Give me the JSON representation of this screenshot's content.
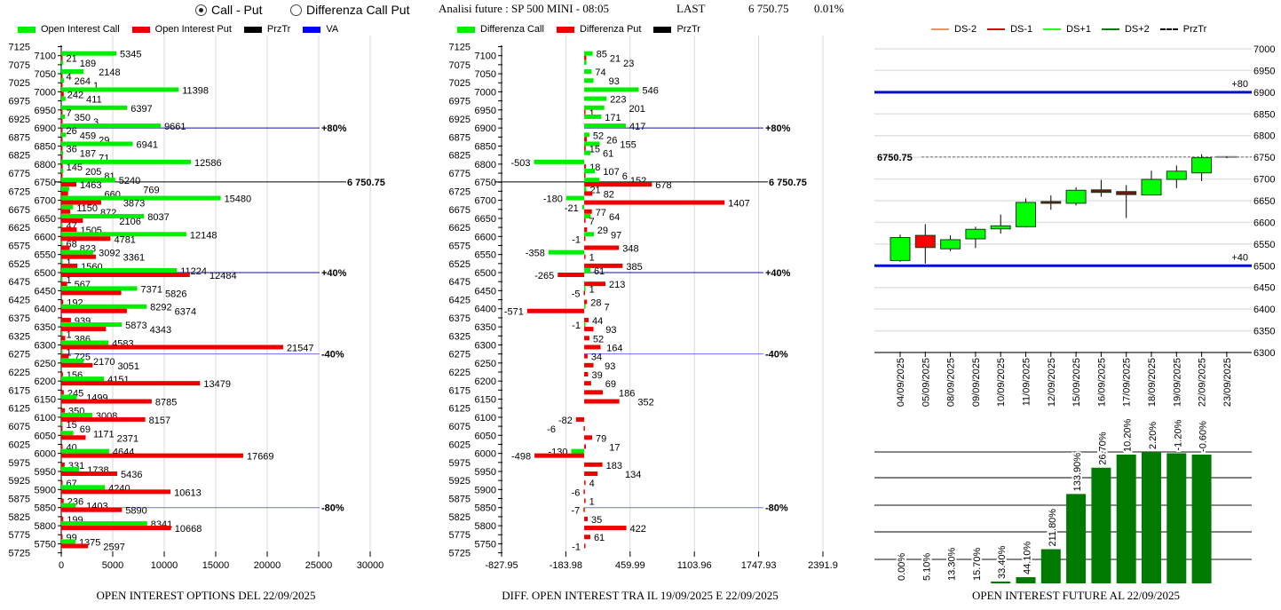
{
  "header": {
    "radio_options": [
      {
        "label": "Call - Put",
        "selected": true
      },
      {
        "label": "Differenza Call Put",
        "selected": false
      }
    ],
    "analysis_title": "Analisi future : SP 500 MINI - 08:05",
    "last_label": "LAST",
    "last_value": "6 750.75",
    "last_change": "0.01%"
  },
  "colors": {
    "call": "#00ee00",
    "put": "#ee0000",
    "prztr": "#000000",
    "va": "#0000ff",
    "level_dark": "#1010a0",
    "level_light": "#7070f0",
    "future_bar": "#007a00"
  },
  "chart_data": [
    {
      "type": "bar",
      "orientation": "horizontal",
      "title": "OPEN INTEREST OPTIONS DEL 22/09/2025",
      "legend": [
        {
          "name": "Open Interest Call",
          "color": "#00ee00"
        },
        {
          "name": "Open Interest Put",
          "color": "#ee0000"
        },
        {
          "name": "PrzTr",
          "color": "#000000"
        },
        {
          "name": "VA",
          "color": "#0000ff"
        }
      ],
      "ylim": [
        5725,
        7125
      ],
      "ytick_step": 25,
      "xlim": [
        0,
        30000
      ],
      "xticks": [
        0,
        5000,
        10000,
        15000,
        20000,
        25000,
        30000
      ],
      "strikes": [
        7100,
        7075,
        7050,
        7025,
        7000,
        6975,
        6950,
        6925,
        6900,
        6875,
        6850,
        6825,
        6800,
        6775,
        6750,
        6725,
        6700,
        6675,
        6650,
        6625,
        6600,
        6575,
        6550,
        6525,
        6500,
        6475,
        6450,
        6425,
        6400,
        6375,
        6350,
        6325,
        6300,
        6275,
        6250,
        6225,
        6200,
        6175,
        6150,
        6125,
        6100,
        6075,
        6050,
        6025,
        6000,
        5975,
        5950,
        5925,
        5900,
        5875,
        5850,
        5825,
        5800,
        5775,
        5750
      ],
      "series": [
        {
          "name": "Open Interest Call",
          "values": [
            5345,
            189,
            2148,
            264,
            11398,
            411,
            6397,
            350,
            9661,
            459,
            6941,
            187,
            12586,
            205,
            5240,
            769,
            15480,
            1150,
            8037,
            47,
            12148,
            68,
            3092,
            1,
            11224,
            1,
            7371,
            0,
            8292,
            0,
            5873,
            1,
            4583,
            1,
            2170,
            0,
            4151,
            0,
            1499,
            0,
            3008,
            15,
            1171,
            0,
            4644,
            0,
            1738,
            0,
            4240,
            0,
            1403,
            0,
            8341,
            0,
            1375
          ]
        },
        {
          "name": "Open Interest Put",
          "values": [
            21,
            0,
            4,
            1,
            242,
            0,
            7,
            3,
            26,
            29,
            36,
            71,
            145,
            81,
            1463,
            660,
            3873,
            872,
            2106,
            1505,
            4781,
            823,
            3361,
            1560,
            12484,
            567,
            5826,
            192,
            6374,
            939,
            4343,
            386,
            21547,
            725,
            3051,
            156,
            13479,
            245,
            8785,
            350,
            8157,
            69,
            2371,
            40,
            17669,
            331,
            5436,
            67,
            10613,
            236,
            5890,
            199,
            10668,
            99,
            2597
          ]
        }
      ],
      "levels": [
        {
          "label": "+80%",
          "value": 6900,
          "tone": "dark"
        },
        {
          "label": "+40%",
          "value": 6500,
          "tone": "dark"
        },
        {
          "label": "-40%",
          "value": 6275,
          "tone": "light"
        },
        {
          "label": "-80%",
          "value": 5850,
          "tone": "light"
        }
      ],
      "prztr": {
        "value": 6750.75,
        "label": "6 750.75"
      }
    },
    {
      "type": "bar",
      "orientation": "horizontal",
      "title": "DIFF. OPEN INTEREST TRA IL 19/09/2025 E 22/09/2025",
      "legend": [
        {
          "name": "Differenza Call",
          "color": "#00ee00"
        },
        {
          "name": "Differenza Put",
          "color": "#ee0000"
        },
        {
          "name": "PrzTr",
          "color": "#000000"
        }
      ],
      "ylim": [
        5725,
        7125
      ],
      "ytick_step": 25,
      "xlim": [
        -827.95,
        2391.9
      ],
      "xticks": [
        "-827.95",
        "-183.98",
        "459.99",
        "1103.96",
        "1747.93",
        "2391.9"
      ],
      "strikes": [
        7100,
        7075,
        7050,
        7025,
        7000,
        6975,
        6950,
        6925,
        6900,
        6875,
        6850,
        6825,
        6800,
        6775,
        6750,
        6725,
        6700,
        6675,
        6650,
        6625,
        6600,
        6575,
        6550,
        6525,
        6500,
        6475,
        6450,
        6425,
        6400,
        6375,
        6350,
        6325,
        6300,
        6275,
        6250,
        6225,
        6200,
        6175,
        6150,
        6125,
        6100,
        6075,
        6050,
        6025,
        6000,
        5975,
        5950,
        5925,
        5900,
        5875,
        5850,
        5825,
        5800,
        5775,
        5750
      ],
      "series": [
        {
          "name": "Differenza Call",
          "values": [
            85,
            23,
            74,
            93,
            546,
            223,
            201,
            171,
            417,
            52,
            155,
            61,
            -503,
            107,
            152,
            21,
            -180,
            -21,
            64,
            0,
            97,
            0,
            -358,
            0,
            61,
            0,
            1,
            0,
            7,
            0,
            -1,
            0,
            0,
            0,
            0,
            0,
            0,
            0,
            0,
            0,
            0,
            0,
            0,
            0,
            -130,
            0,
            0,
            0,
            0,
            0,
            0,
            0,
            0,
            0,
            0
          ]
        },
        {
          "name": "Differenza Put",
          "values": [
            21,
            0,
            0,
            0,
            0,
            0,
            1,
            0,
            0,
            26,
            15,
            0,
            18,
            6,
            678,
            82,
            1407,
            77,
            7,
            29,
            -1,
            348,
            1,
            385,
            -265,
            213,
            -5,
            28,
            -571,
            44,
            93,
            52,
            164,
            34,
            93,
            39,
            69,
            186,
            352,
            0,
            -82,
            -6,
            79,
            17,
            -498,
            183,
            134,
            4,
            -6,
            1,
            -7,
            35,
            422,
            61,
            -1
          ]
        }
      ],
      "levels": [
        {
          "label": "+80%",
          "value": 6900,
          "tone": "dark"
        },
        {
          "label": "+40%",
          "value": 6500,
          "tone": "dark"
        },
        {
          "label": "-40%",
          "value": 6275,
          "tone": "light"
        },
        {
          "label": "-80%",
          "value": 5850,
          "tone": "light"
        }
      ],
      "prztr": {
        "value": 6750.75,
        "label": "6 750.75"
      }
    },
    {
      "type": "candlestick",
      "legend": [
        {
          "name": "DS-2",
          "color": "#e8956a",
          "style": "solid"
        },
        {
          "name": "DS-1",
          "color": "#cc1111",
          "style": "solid"
        },
        {
          "name": "DS+1",
          "color": "#33ee33",
          "style": "solid"
        },
        {
          "name": "DS+2",
          "color": "#117711",
          "style": "solid"
        },
        {
          "name": "PrzTr",
          "color": "#000000",
          "style": "dashed"
        }
      ],
      "ylim": [
        6300,
        7000
      ],
      "ytick_step": 50,
      "dates": [
        "04/09/2025",
        "05/09/2025",
        "08/09/2025",
        "09/09/2025",
        "10/09/2025",
        "11/09/2025",
        "12/09/2025",
        "15/09/2025",
        "16/09/2025",
        "17/09/2025",
        "18/09/2025",
        "19/09/2025",
        "22/09/2025",
        "23/09/2025"
      ],
      "candles": [
        {
          "open": 6512,
          "high": 6572,
          "low": 6509,
          "close": 6565,
          "color": "#00ff00"
        },
        {
          "open": 6570,
          "high": 6596,
          "low": 6505,
          "close": 6542,
          "color": "#ff0000"
        },
        {
          "open": 6539,
          "high": 6570,
          "low": 6534,
          "close": 6560,
          "color": "#00ff00"
        },
        {
          "open": 6562,
          "high": 6590,
          "low": 6541,
          "close": 6584,
          "color": "#00ff00"
        },
        {
          "open": 6585,
          "high": 6618,
          "low": 6574,
          "close": 6592,
          "color": "#00ff00"
        },
        {
          "open": 6590,
          "high": 6655,
          "low": 6588,
          "close": 6646,
          "color": "#00ff00"
        },
        {
          "open": 6648,
          "high": 6662,
          "low": 6629,
          "close": 6644,
          "color": "#7a1010"
        },
        {
          "open": 6644,
          "high": 6681,
          "low": 6639,
          "close": 6674,
          "color": "#00ff00"
        },
        {
          "open": 6675,
          "high": 6698,
          "low": 6659,
          "close": 6669,
          "color": "#7a1010"
        },
        {
          "open": 6671,
          "high": 6686,
          "low": 6610,
          "close": 6664,
          "color": "#7a1010"
        },
        {
          "open": 6663,
          "high": 6719,
          "low": 6663,
          "close": 6699,
          "color": "#00ff00"
        },
        {
          "open": 6699,
          "high": 6731,
          "low": 6679,
          "close": 6718,
          "color": "#00ff00"
        },
        {
          "open": 6714,
          "high": 6757,
          "low": 6695,
          "close": 6749,
          "color": "#00ff00"
        },
        {
          "open": 6750,
          "high": 6752,
          "low": 6748,
          "close": 6750.75,
          "color": "#808080"
        }
      ],
      "levels": [
        {
          "label": "+80",
          "value": 6900
        },
        {
          "label": "+40",
          "value": 6500
        }
      ],
      "prztr": {
        "value": 6750.75,
        "label": "6750.75"
      }
    },
    {
      "type": "bar",
      "title": "OPEN INTEREST FUTURE AL 22/09/2025",
      "categories": [
        "04/09/2025",
        "05/09/2025",
        "08/09/2025",
        "09/09/2025",
        "10/09/2025",
        "11/09/2025",
        "12/09/2025",
        "15/09/2025",
        "16/09/2025",
        "17/09/2025",
        "18/09/2025",
        "19/09/2025",
        "22/09/2025"
      ],
      "labels": [
        "0.00%",
        "5.10%",
        "13.30%",
        "15.70%",
        "33.40%",
        "44.10%",
        "211.80%",
        "133.90%",
        "26.70%",
        "10.20%",
        "2.20%",
        "-1.20%",
        "-0.60%"
      ],
      "relative_level": [
        0,
        0,
        0,
        0,
        0.014,
        0.047,
        0.26,
        0.68,
        0.88,
        0.98,
        1.0,
        0.99,
        0.98
      ],
      "color": "#007a00"
    }
  ]
}
